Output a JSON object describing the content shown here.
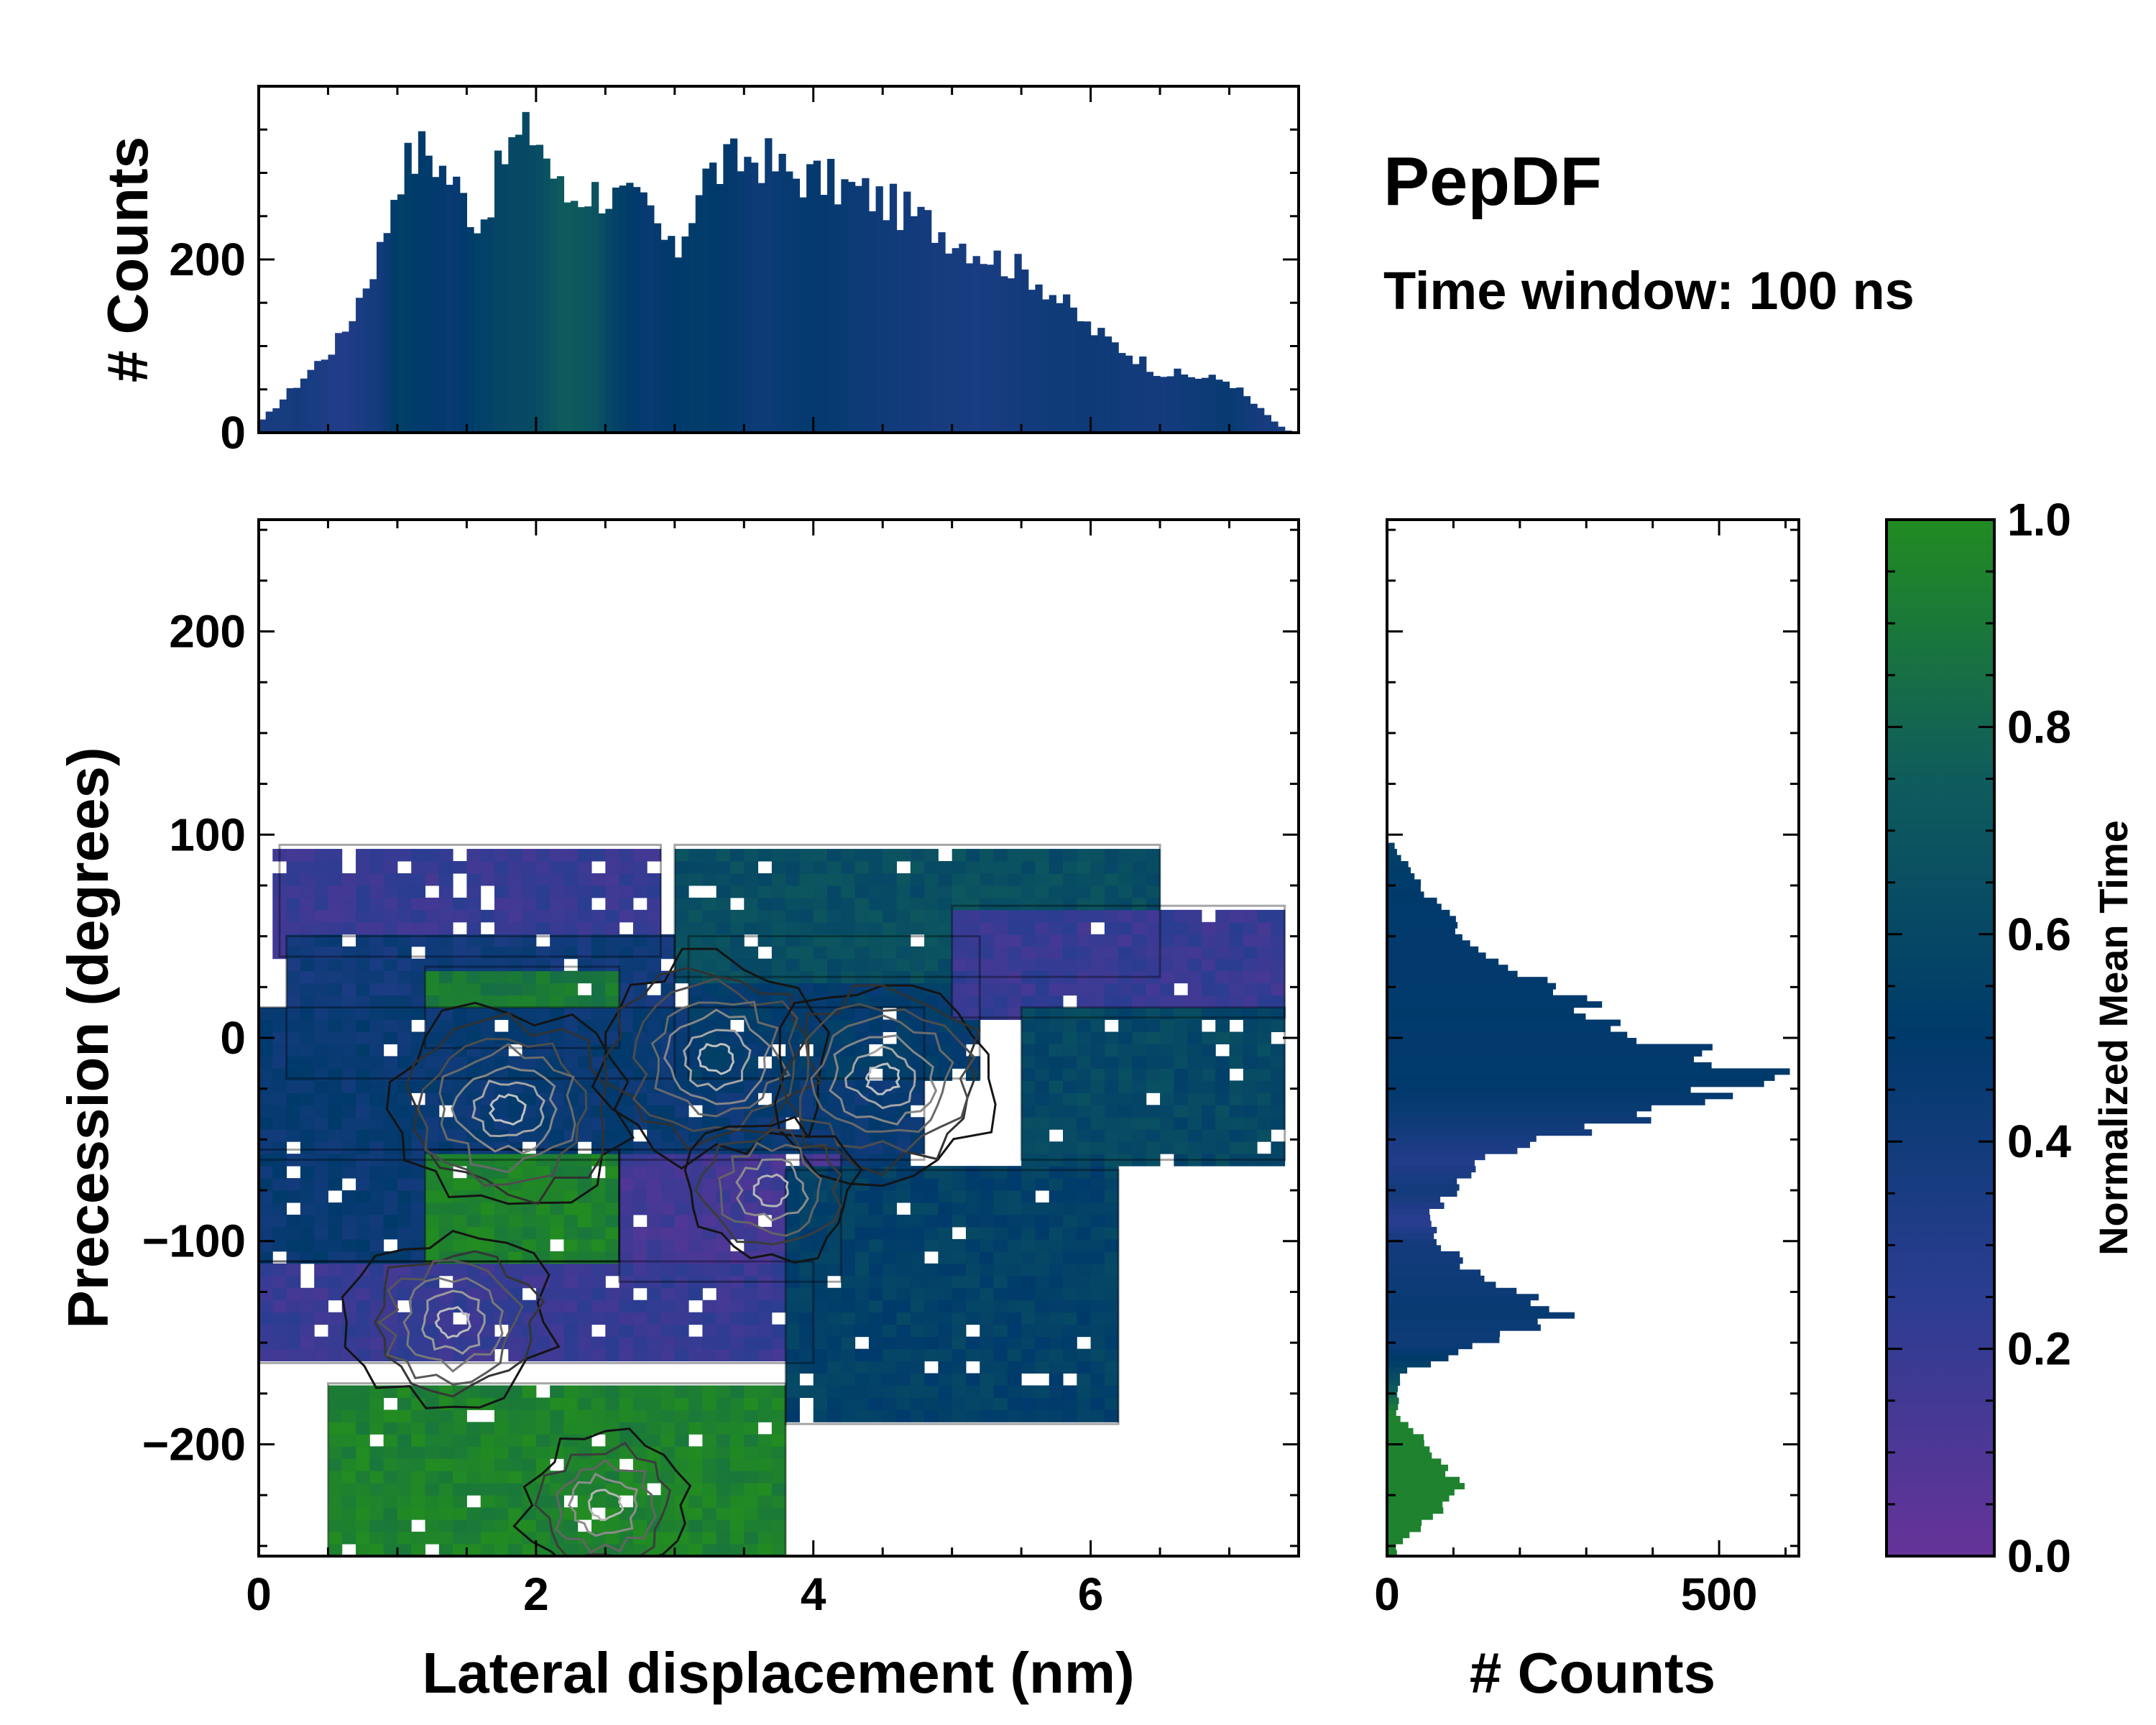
{
  "chart_data": [
    {
      "id": "top_histogram",
      "type": "bar",
      "xlim": [
        0,
        7.5
      ],
      "ylim": [
        0,
        400
      ],
      "ylabel": "# Counts",
      "xticks": [
        0,
        2,
        4,
        6
      ],
      "yticks": [
        0,
        200
      ],
      "yticklabels": [
        "0",
        "200"
      ],
      "profile": {
        "x": [
          0,
          0.3,
          0.6,
          0.9,
          1.0,
          1.2,
          1.4,
          1.6,
          1.8,
          2.0,
          2.2,
          2.4,
          2.6,
          2.8,
          3.0,
          3.2,
          3.4,
          3.6,
          3.8,
          4.0,
          4.4,
          4.8,
          5.2,
          5.6,
          6.0,
          6.5,
          7.0,
          7.2,
          7.4,
          7.5
        ],
        "counts": [
          10,
          60,
          110,
          220,
          300,
          330,
          290,
          240,
          330,
          350,
          270,
          280,
          270,
          260,
          200,
          295,
          310,
          320,
          300,
          295,
          275,
          245,
          210,
          180,
          120,
          70,
          60,
          30,
          3,
          0
        ],
        "mean_time": [
          0.35,
          0.38,
          0.3,
          0.4,
          0.55,
          0.5,
          0.45,
          0.55,
          0.6,
          0.62,
          0.75,
          0.7,
          0.55,
          0.45,
          0.5,
          0.52,
          0.48,
          0.42,
          0.45,
          0.48,
          0.42,
          0.38,
          0.35,
          0.4,
          0.42,
          0.38,
          0.45,
          0.38,
          0.35,
          0.3
        ]
      }
    },
    {
      "id": "main_2d_histogram",
      "type": "heatmap",
      "xlabel": "Lateral displacement (nm)",
      "ylabel": "Precession (degrees)",
      "xlim": [
        0,
        7.5
      ],
      "ylim": [
        -255,
        255
      ],
      "xticks": [
        0,
        2,
        4,
        6
      ],
      "xticklabels": [
        "0",
        "2",
        "4",
        "6"
      ],
      "yticks": [
        200,
        100,
        0,
        -100,
        -200
      ],
      "yticklabels": [
        "200",
        "100",
        "0",
        "−100",
        "−200"
      ],
      "cells_description": "2D histogram of counts with cell color = normalized mean time, overlaid with density contours",
      "regions": [
        {
          "x0": 0.15,
          "x1": 2.9,
          "y0": 40,
          "y1": 95,
          "mean_time": 0.2
        },
        {
          "x0": 0.2,
          "x1": 3.0,
          "y0": -20,
          "y1": 50,
          "mean_time": 0.4
        },
        {
          "x0": 1.2,
          "x1": 2.6,
          "y0": -5,
          "y1": 35,
          "mean_time": 0.9
        },
        {
          "x0": 0.0,
          "x1": 4.8,
          "y0": -60,
          "y1": 15,
          "mean_time": 0.45
        },
        {
          "x0": 3.1,
          "x1": 5.2,
          "y0": -20,
          "y1": 50,
          "mean_time": 0.5
        },
        {
          "x0": 3.0,
          "x1": 6.5,
          "y0": 30,
          "y1": 95,
          "mean_time": 0.65
        },
        {
          "x0": 5.0,
          "x1": 7.4,
          "y0": 10,
          "y1": 65,
          "mean_time": 0.2
        },
        {
          "x0": 5.5,
          "x1": 7.4,
          "y0": -60,
          "y1": 15,
          "mean_time": 0.6
        },
        {
          "x0": 0.0,
          "x1": 2.6,
          "y0": -110,
          "y1": -55,
          "mean_time": 0.45
        },
        {
          "x0": 1.2,
          "x1": 2.6,
          "y0": -110,
          "y1": -55,
          "mean_time": 0.95
        },
        {
          "x0": 2.6,
          "x1": 4.2,
          "y0": -120,
          "y1": -55,
          "mean_time": 0.15
        },
        {
          "x0": 0.0,
          "x1": 4.0,
          "y0": -160,
          "y1": -110,
          "mean_time": 0.2
        },
        {
          "x0": 3.8,
          "x1": 6.2,
          "y0": -190,
          "y1": -65,
          "mean_time": 0.55
        },
        {
          "x0": 0.5,
          "x1": 3.8,
          "y0": -255,
          "y1": -170,
          "mean_time": 0.95
        }
      ],
      "density_peaks": [
        {
          "x": 1.8,
          "y": -35,
          "strength": 1.0
        },
        {
          "x": 3.3,
          "y": -10,
          "strength": 1.0
        },
        {
          "x": 4.5,
          "y": -20,
          "strength": 0.9
        },
        {
          "x": 1.4,
          "y": -140,
          "strength": 0.8
        },
        {
          "x": 3.7,
          "y": -75,
          "strength": 0.6
        },
        {
          "x": 2.5,
          "y": -230,
          "strength": 0.5
        }
      ]
    },
    {
      "id": "right_histogram",
      "type": "bar",
      "orientation": "horizontal",
      "xlim": [
        0,
        620
      ],
      "ylim": [
        -255,
        255
      ],
      "xlabel": "# Counts",
      "xticks": [
        0,
        500
      ],
      "xticklabels": [
        "0",
        "500"
      ],
      "profile": {
        "y": [
          95,
          70,
          40,
          10,
          -5,
          -20,
          -35,
          -60,
          -75,
          -90,
          -100,
          -120,
          -135,
          -150,
          -165,
          -185,
          -200,
          -220,
          -235,
          -250
        ],
        "counts": [
          10,
          60,
          150,
          340,
          450,
          570,
          420,
          130,
          100,
          60,
          80,
          150,
          280,
          150,
          20,
          15,
          60,
          110,
          70,
          15
        ],
        "mean_time": [
          0.55,
          0.5,
          0.48,
          0.5,
          0.48,
          0.5,
          0.45,
          0.3,
          0.4,
          0.25,
          0.38,
          0.42,
          0.45,
          0.42,
          0.6,
          0.95,
          0.95,
          0.95,
          0.95,
          0.95
        ]
      }
    }
  ],
  "annotations": {
    "title": "PepDF",
    "subtitle": "Time window: 100 ns"
  },
  "colorbar": {
    "label": "Normalized Mean Time",
    "range": [
      0.0,
      1.0
    ],
    "ticklabels": [
      "0.0",
      "0.2",
      "0.4",
      "0.6",
      "0.8",
      "1.0"
    ],
    "colors": [
      "#663399",
      "#2b3d91",
      "#003a6b",
      "#0f5c5c",
      "#228b22"
    ]
  }
}
